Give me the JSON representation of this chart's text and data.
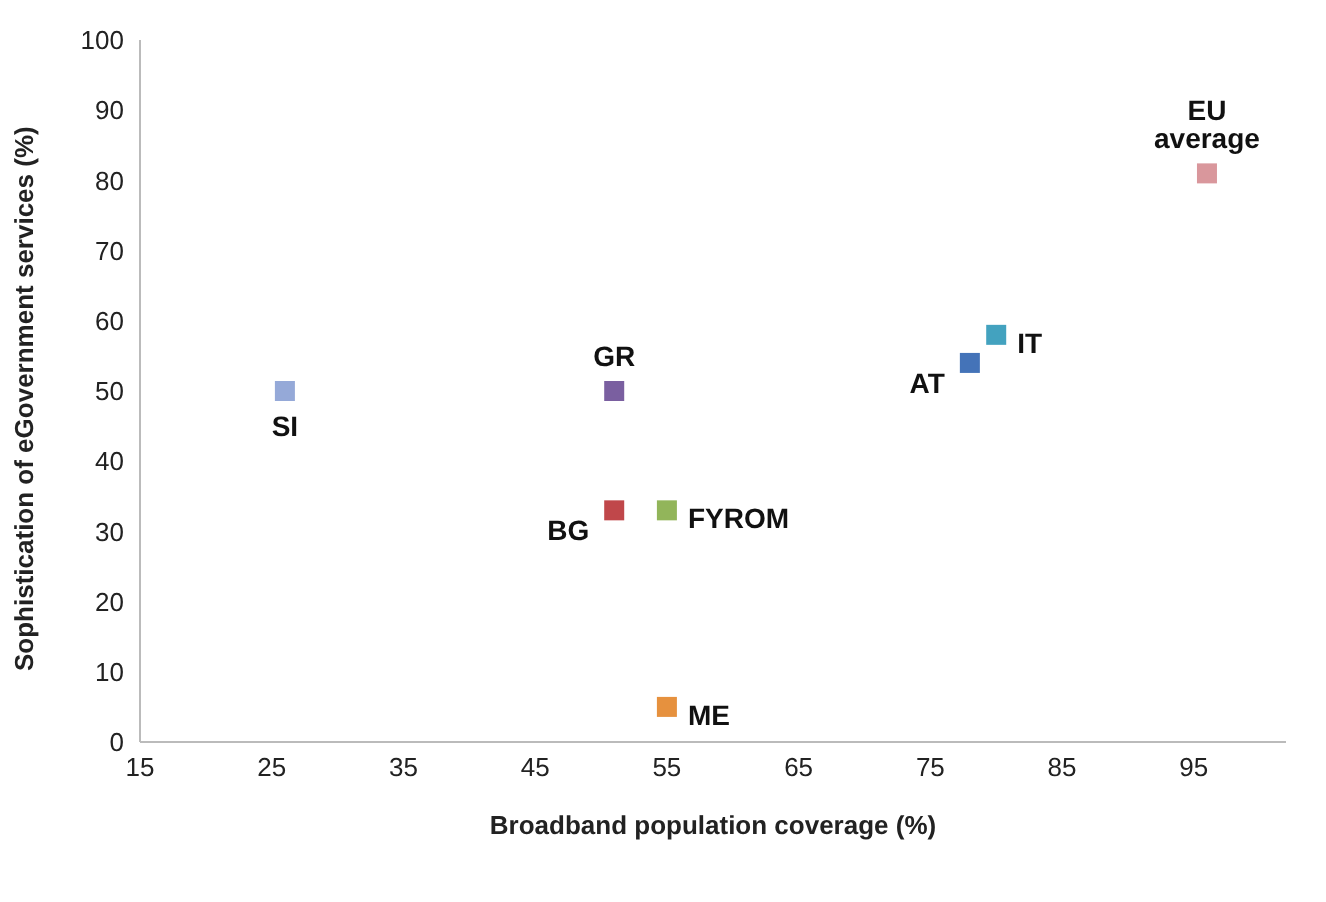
{
  "chart_data": {
    "type": "scatter",
    "xlabel": "Broadband population coverage (%)",
    "ylabel": "Sophistication of eGovernment services (%)",
    "xlim": [
      15,
      102
    ],
    "xticks": [
      15,
      25,
      35,
      45,
      55,
      65,
      75,
      85,
      95
    ],
    "ylim": [
      0,
      100
    ],
    "yticks": [
      0,
      10,
      20,
      30,
      40,
      50,
      60,
      70,
      80,
      90,
      100
    ],
    "grid": false,
    "legend": false,
    "marker": "square",
    "series": [
      {
        "name": "SI",
        "color": "#95a9d8",
        "x": [
          26
        ],
        "values": [
          50
        ]
      },
      {
        "name": "GR",
        "color": "#7a5fa0",
        "x": [
          51
        ],
        "values": [
          50
        ]
      },
      {
        "name": "BG",
        "color": "#c0474a",
        "x": [
          51
        ],
        "values": [
          33
        ]
      },
      {
        "name": "FYROM",
        "color": "#92b55a",
        "x": [
          55
        ],
        "values": [
          33
        ]
      },
      {
        "name": "ME",
        "color": "#e6913e",
        "x": [
          55
        ],
        "values": [
          5
        ]
      },
      {
        "name": "AT",
        "color": "#4473b8",
        "x": [
          78
        ],
        "values": [
          54
        ]
      },
      {
        "name": "IT",
        "color": "#43a2bf",
        "x": [
          80
        ],
        "values": [
          58
        ]
      },
      {
        "name": "EU average",
        "color": "#d9979c",
        "x": [
          96
        ],
        "values": [
          81
        ]
      }
    ]
  }
}
